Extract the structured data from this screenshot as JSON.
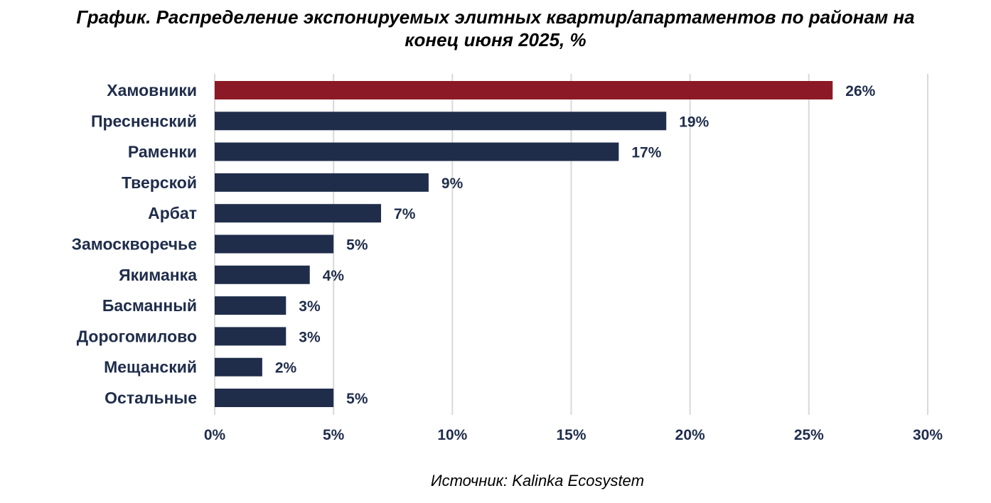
{
  "chart_data": {
    "type": "bar",
    "orientation": "horizontal",
    "title_lines": [
      "График. Распределение экспонируемых элитных квартир/апартаментов по районам на",
      "конец июня 2025, %"
    ],
    "categories": [
      "Хамовники",
      "Пресненский",
      "Раменки",
      "Тверской",
      "Арбат",
      "Замоскворечье",
      "Якиманка",
      "Басманный",
      "Дорогомилово",
      "Мещанский",
      "Остальные"
    ],
    "values": [
      26,
      19,
      17,
      9,
      7,
      5,
      4,
      3,
      3,
      2,
      5
    ],
    "value_labels": [
      "26%",
      "19%",
      "17%",
      "9%",
      "7%",
      "5%",
      "4%",
      "3%",
      "3%",
      "2%",
      "5%"
    ],
    "xlim": [
      0,
      30
    ],
    "x_ticks": [
      0,
      5,
      10,
      15,
      20,
      25,
      30
    ],
    "x_tick_labels": [
      "0%",
      "5%",
      "10%",
      "15%",
      "20%",
      "25%",
      "30%"
    ],
    "highlight_index": 0,
    "colors": {
      "bar": "#1f2d4b",
      "highlight": "#8b1a26",
      "grid": "#d9d9d9",
      "text": "#1f2d4b"
    },
    "grid": true,
    "legend": "none"
  },
  "source": "Источник: Kalinka Ecosystem"
}
